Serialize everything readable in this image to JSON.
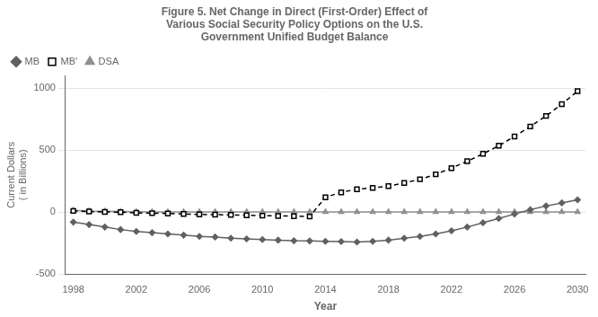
{
  "chart_data": {
    "type": "line",
    "title": "Figure 5. Net Change in Direct (First-Order) Effect of\nVarious Social Security Policy Options on the U.S.\nGovernment Unified Budget Balance",
    "xlabel": "Year",
    "ylabel": "Current Dollars\n( in Billions)",
    "x": [
      1998,
      1999,
      2000,
      2001,
      2002,
      2003,
      2004,
      2005,
      2006,
      2007,
      2008,
      2009,
      2010,
      2011,
      2012,
      2013,
      2014,
      2015,
      2016,
      2017,
      2018,
      2019,
      2020,
      2021,
      2022,
      2023,
      2024,
      2025,
      2026,
      2027,
      2028,
      2029,
      2030
    ],
    "series": [
      {
        "name": "MB",
        "color": "#606060",
        "marker": "diamond",
        "line_style": "solid",
        "values": [
          -80,
          -100,
          -120,
          -140,
          -155,
          -165,
          -175,
          -185,
          -195,
          -200,
          -210,
          -215,
          -220,
          -225,
          -230,
          -232,
          -235,
          -237,
          -240,
          -235,
          -225,
          -210,
          -195,
          -175,
          -150,
          -120,
          -85,
          -50,
          -15,
          20,
          50,
          75,
          100
        ]
      },
      {
        "name": "MB'",
        "color": "#000000",
        "marker": "square",
        "line_style": "dashed",
        "values": [
          10,
          5,
          2,
          0,
          -5,
          -8,
          -10,
          -15,
          -18,
          -20,
          -22,
          -25,
          -28,
          -30,
          -32,
          -35,
          120,
          160,
          185,
          195,
          210,
          235,
          265,
          305,
          355,
          410,
          470,
          535,
          610,
          690,
          775,
          870,
          975
        ]
      },
      {
        "name": "DSA",
        "color": "#909090",
        "marker": "triangle",
        "line_style": "solid",
        "values": [
          15,
          10,
          8,
          5,
          3,
          2,
          2,
          2,
          2,
          2,
          2,
          2,
          2,
          2,
          2,
          2,
          2,
          2,
          2,
          2,
          2,
          2,
          2,
          2,
          2,
          2,
          2,
          2,
          2,
          2,
          2,
          2,
          2
        ]
      }
    ],
    "xlim": [
      1997.5,
      2030.5
    ],
    "xticks": [
      1998,
      2002,
      2006,
      2010,
      2014,
      2018,
      2022,
      2026,
      2030
    ],
    "ylim": [
      -500,
      1100
    ],
    "yticks": [
      -500,
      0,
      500,
      1000
    ],
    "grid": "y",
    "legend": "upper left"
  }
}
